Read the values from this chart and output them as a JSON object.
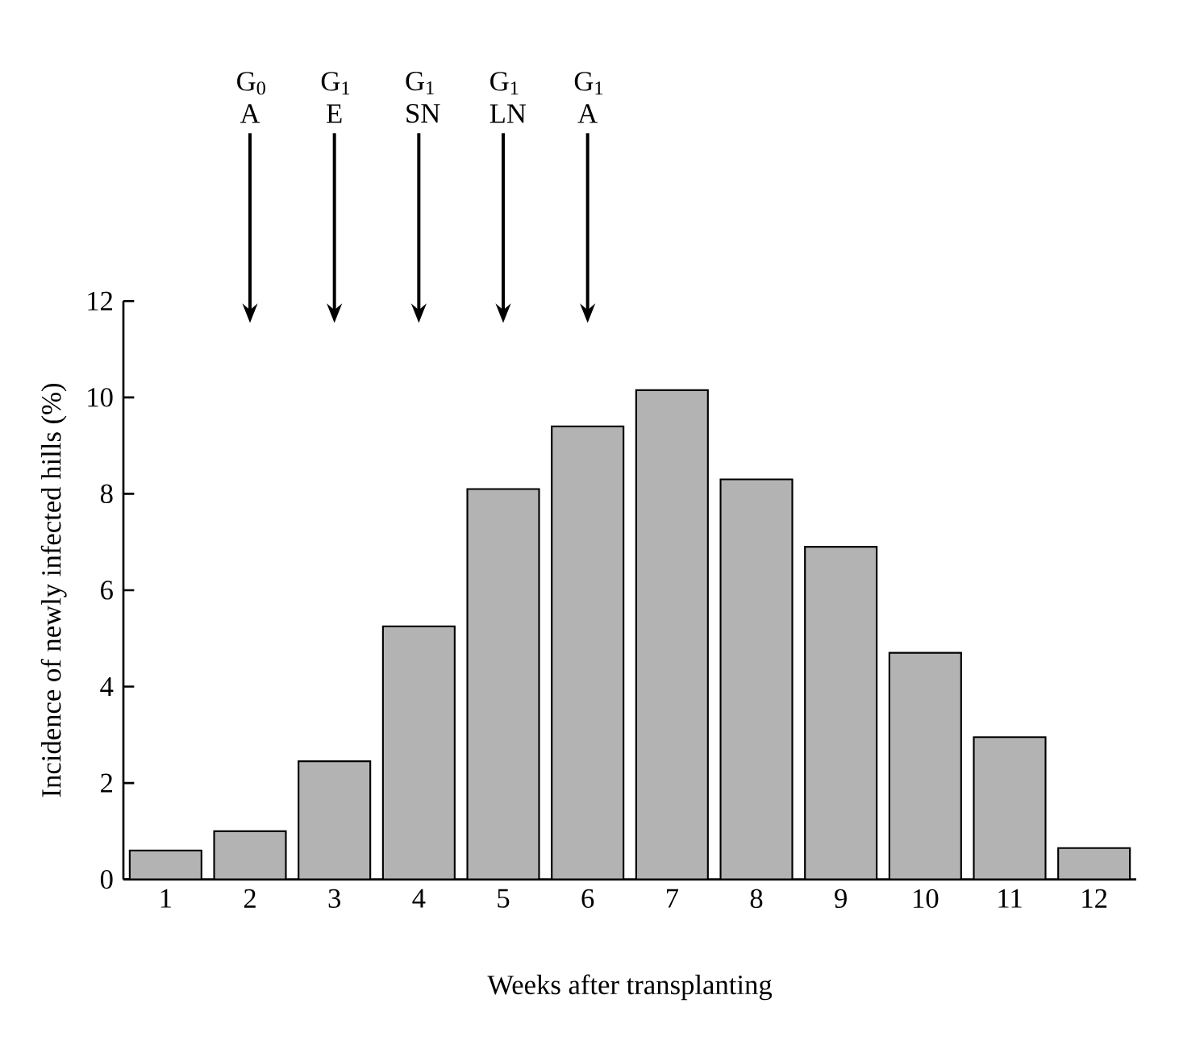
{
  "chart_data": {
    "type": "bar",
    "xlabel": "Weeks after transplanting",
    "ylabel": "Incidence of newly infected hills (%)",
    "categories": [
      "1",
      "2",
      "3",
      "4",
      "5",
      "6",
      "7",
      "8",
      "9",
      "10",
      "11",
      "12"
    ],
    "values": [
      0.6,
      1.0,
      2.45,
      5.25,
      8.1,
      9.4,
      10.15,
      8.3,
      6.9,
      4.7,
      2.95,
      0.65
    ],
    "color": "#b3b3b3",
    "ylim": [
      0,
      12
    ],
    "yticks": [
      0,
      2,
      4,
      6,
      8,
      10,
      12
    ],
    "annotations": [
      {
        "text": "G$_{0}$ A",
        "x": "2"
      },
      {
        "text": "G$_{1}$ E",
        "x": "3"
      },
      {
        "text": "G$_{1}$ SN",
        "x": "4"
      },
      {
        "text": "G$_{1}$ LN",
        "x": "5"
      },
      {
        "text": "G$_{1}$ A",
        "x": "6"
      }
    ]
  }
}
